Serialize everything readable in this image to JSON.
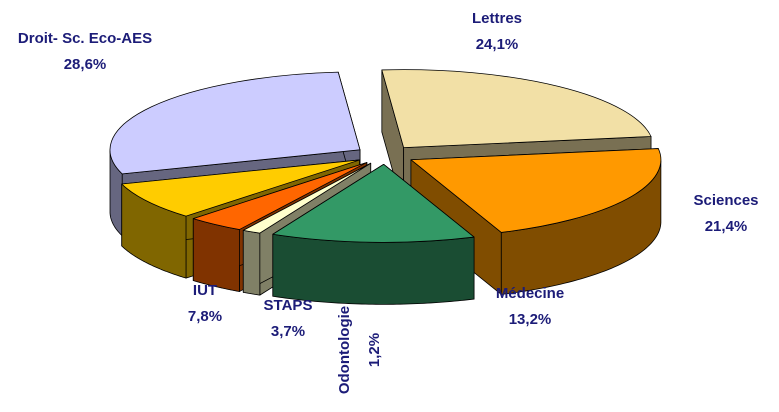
{
  "chart_data": {
    "type": "pie3d",
    "categories": [
      "Lettres",
      "Sciences",
      "Médecine",
      "Odontologie",
      "STAPS",
      "IUT",
      "Droit- Sc. Eco-AES"
    ],
    "values": [
      24.1,
      21.4,
      13.2,
      1.2,
      3.7,
      7.8,
      28.6
    ],
    "value_labels": [
      "24,1%",
      "21,4%",
      "13,2%",
      "1,2%",
      "3,7%",
      "7,8%",
      "28,6%"
    ],
    "colors": [
      "#f2e0a6",
      "#ff9900",
      "#339966",
      "#ffffcc",
      "#ff6600",
      "#ffcc00",
      "#ccccff"
    ]
  }
}
